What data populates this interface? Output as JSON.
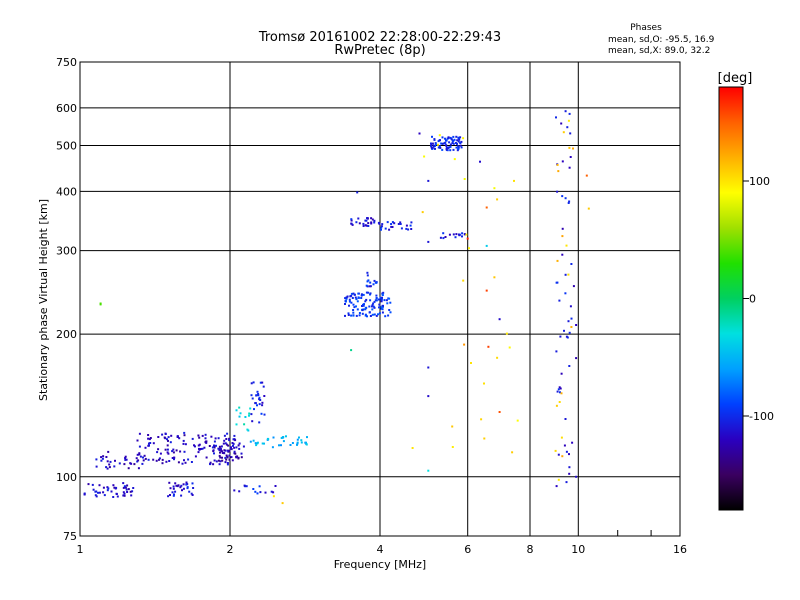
{
  "chart_data": {
    "type": "scatter",
    "title": "Tromsø 20161002 22:28:00-22:29:43",
    "subtitle": "RwPretec (8p)",
    "xlabel": "Frequency [MHz]",
    "ylabel": "Stationary phase Virtual Height [km]",
    "xscale": "log",
    "yscale": "log",
    "xlim": [
      1,
      16
    ],
    "ylim": [
      75,
      750
    ],
    "xticks": [
      1,
      2,
      4,
      6,
      8,
      10,
      16
    ],
    "yticks": [
      75,
      100,
      200,
      300,
      400,
      500,
      600,
      750
    ],
    "grid": true,
    "legend": {
      "title": "Phases",
      "lines": [
        "mean, sd,O: -95.5, 16.9",
        "mean, sd,X: 89.0, 32.2"
      ]
    },
    "colorbar": {
      "label": "[deg]",
      "range": [
        -180,
        180
      ],
      "ticks": [
        100,
        0,
        -100
      ],
      "colors": [
        "#000000",
        "#3a0060",
        "#2a00c0",
        "#0040ff",
        "#00a0ff",
        "#00e0e0",
        "#00d060",
        "#20e000",
        "#a0e000",
        "#ffff00",
        "#ffb000",
        "#ff6000",
        "#ff0000"
      ]
    },
    "clusters": [
      {
        "x": [
          1.02,
          1.28
        ],
        "y": [
          90,
          97
        ],
        "phase": -115,
        "n": 45
      },
      {
        "x": [
          1.05,
          1.32
        ],
        "y": [
          104,
          113
        ],
        "phase": -120,
        "n": 28
      },
      {
        "x": [
          1.3,
          2.05
        ],
        "y": [
          106,
          124
        ],
        "phase": -118,
        "n": 150
      },
      {
        "x": [
          1.5,
          1.7
        ],
        "y": [
          91,
          98
        ],
        "phase": -110,
        "n": 30
      },
      {
        "x": [
          1.9,
          2.15
        ],
        "y": [
          108,
          118
        ],
        "phase": -125,
        "n": 40
      },
      {
        "x": [
          2.05,
          2.2
        ],
        "y": [
          125,
          140
        ],
        "phase": -30,
        "n": 12
      },
      {
        "x": [
          2.2,
          2.35
        ],
        "y": [
          130,
          160
        ],
        "phase": -105,
        "n": 28
      },
      {
        "x": [
          2.2,
          2.9
        ],
        "y": [
          115,
          122
        ],
        "phase": -50,
        "n": 35
      },
      {
        "x": [
          2.0,
          2.55
        ],
        "y": [
          91,
          96
        ],
        "phase": -105,
        "n": 14
      },
      {
        "x": [
          3.4,
          4.2
        ],
        "y": [
          218,
          245
        ],
        "phase": -95,
        "n": 120
      },
      {
        "x": [
          3.75,
          3.95
        ],
        "y": [
          250,
          272
        ],
        "phase": -100,
        "n": 14
      },
      {
        "x": [
          3.45,
          3.9
        ],
        "y": [
          338,
          352
        ],
        "phase": -110,
        "n": 25
      },
      {
        "x": [
          3.95,
          4.65
        ],
        "y": [
          332,
          345
        ],
        "phase": -105,
        "n": 24
      },
      {
        "x": [
          5.05,
          5.85
        ],
        "y": [
          488,
          522
        ],
        "phase": -100,
        "n": 80
      },
      {
        "x": [
          5.3,
          6.0
        ],
        "y": [
          318,
          328
        ],
        "phase": -110,
        "n": 15
      },
      {
        "x": [
          9.0,
          9.8
        ],
        "y": [
          95,
          600
        ],
        "phase": -110,
        "n": 50
      },
      {
        "x": [
          9.0,
          9.8
        ],
        "y": [
          98,
          580
        ],
        "phase": 110,
        "n": 18
      },
      {
        "x": [
          4.8,
          7.6
        ],
        "y": [
          110,
          560
        ],
        "phase": 100,
        "n": 25
      }
    ],
    "points": [
      {
        "x": 1.1,
        "y": 232,
        "phase": 40
      },
      {
        "x": 1.1,
        "y": 231,
        "phase": 40
      },
      {
        "x": 3.5,
        "y": 185,
        "phase": -10
      },
      {
        "x": 3.6,
        "y": 398,
        "phase": -105
      },
      {
        "x": 5.0,
        "y": 421,
        "phase": -110
      },
      {
        "x": 4.8,
        "y": 530,
        "phase": -120
      },
      {
        "x": 5.0,
        "y": 313,
        "phase": -110
      },
      {
        "x": 5.0,
        "y": 170,
        "phase": -110
      },
      {
        "x": 5.0,
        "y": 148,
        "phase": -115
      },
      {
        "x": 5.0,
        "y": 103,
        "phase": -30
      },
      {
        "x": 4.65,
        "y": 115,
        "phase": 100
      },
      {
        "x": 6.0,
        "y": 318,
        "phase": 170
      },
      {
        "x": 6.35,
        "y": 462,
        "phase": -115
      },
      {
        "x": 6.55,
        "y": 370,
        "phase": 150
      },
      {
        "x": 6.55,
        "y": 307,
        "phase": -40
      },
      {
        "x": 6.55,
        "y": 247,
        "phase": 160
      },
      {
        "x": 6.95,
        "y": 215,
        "phase": -115
      },
      {
        "x": 6.95,
        "y": 137,
        "phase": 155
      },
      {
        "x": 5.9,
        "y": 190,
        "phase": 130
      },
      {
        "x": 6.6,
        "y": 188,
        "phase": 160
      },
      {
        "x": 10.4,
        "y": 432,
        "phase": 150
      },
      {
        "x": 10.5,
        "y": 368,
        "phase": 110
      },
      {
        "x": 9.9,
        "y": 100,
        "phase": -115
      },
      {
        "x": 9.9,
        "y": 209,
        "phase": -120
      },
      {
        "x": 9.9,
        "y": 178,
        "phase": -125
      },
      {
        "x": 2.45,
        "y": 91,
        "phase": 100
      },
      {
        "x": 2.55,
        "y": 88,
        "phase": 110
      }
    ]
  }
}
